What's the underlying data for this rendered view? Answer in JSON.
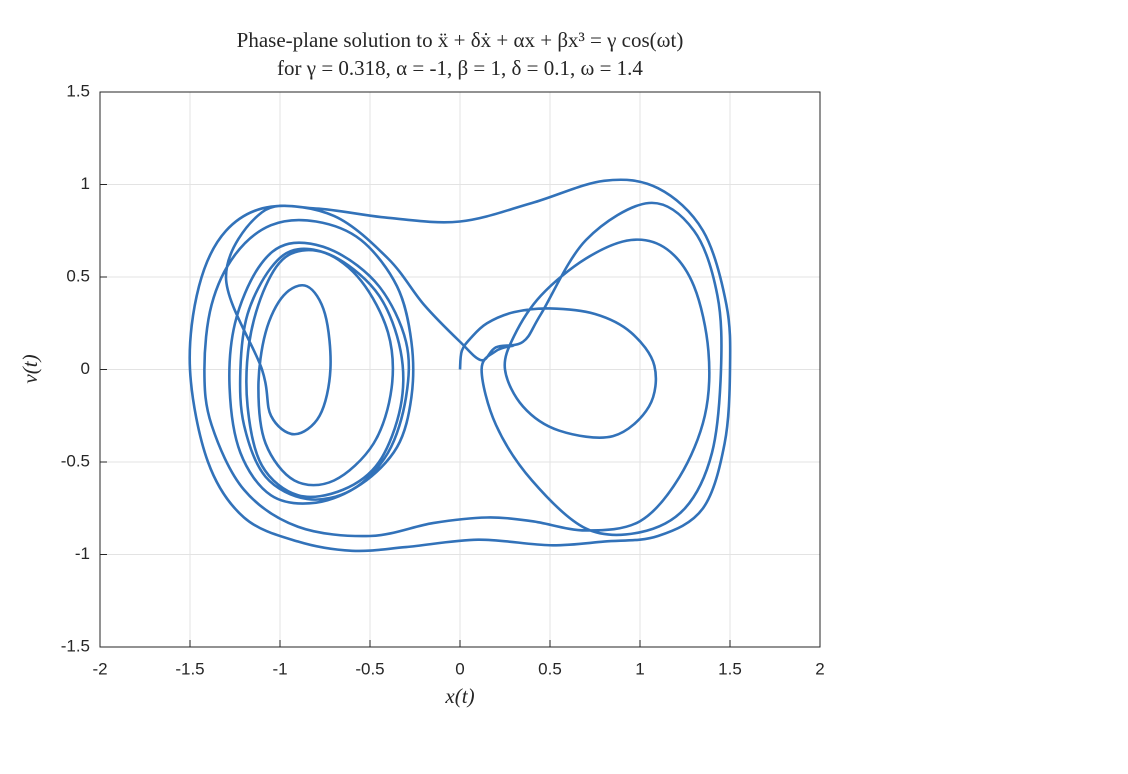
{
  "chart_data": {
    "type": "line",
    "title": "Phase-plane solution to ẍ + δẋ + αx + βx³ = γ cos(ωt)",
    "subtitle": "for γ = 0.318, α = -1, β = 1, δ = 0.1, ω = 1.4",
    "xlabel": "x(t)",
    "ylabel": "v(t)",
    "xlim": [
      -2,
      2
    ],
    "ylim": [
      -1.5,
      1.5
    ],
    "xticks": [
      -2,
      -1.5,
      -1,
      -0.5,
      0,
      0.5,
      1,
      1.5,
      2
    ],
    "yticks": [
      -1.5,
      -1,
      -0.5,
      0,
      0.5,
      1,
      1.5
    ],
    "grid": true,
    "color": "#3272b9",
    "x": [
      0,
      0.01,
      0.06,
      0.15,
      0.3,
      0.5,
      0.75,
      0.95,
      1.08,
      1.05,
      0.85,
      0.55,
      0.35,
      0.25,
      0.3,
      0.45,
      0.7,
      0.95,
      1.15,
      1.3,
      1.38,
      1.36,
      1.22,
      1.0,
      0.7,
      0.4,
      0.15,
      -0.15,
      -0.5,
      -0.9,
      -1.2,
      -1.38,
      -1.42,
      -1.38,
      -1.25,
      -1.05,
      -0.8,
      -0.55,
      -0.35,
      -0.27,
      -0.27,
      -0.35,
      -0.55,
      -0.8,
      -1.05,
      -1.22,
      -1.28,
      -1.25,
      -1.12,
      -0.95,
      -0.7,
      -0.45,
      -0.3,
      -0.3,
      -0.4,
      -0.6,
      -0.85,
      -1.08,
      -1.2,
      -1.22,
      -1.18,
      -1.05,
      -0.9,
      -0.68,
      -0.45,
      -0.33,
      -0.33,
      -0.45,
      -0.65,
      -0.9,
      -1.1,
      -1.18,
      -1.17,
      -1.08,
      -0.95,
      -0.75,
      -0.55,
      -0.4,
      -0.38,
      -0.48,
      -0.7,
      -0.92,
      -1.08,
      -1.12,
      -1.08,
      -0.98,
      -0.85,
      -0.75,
      -0.72,
      -0.78,
      -0.92,
      -1.05,
      -1.1,
      -1.3,
      -1.1,
      -0.8,
      -0.4,
      0,
      0.4,
      0.8,
      1.1,
      1.35,
      1.48,
      1.5,
      1.47,
      1.35,
      1.1,
      0.8,
      0.5,
      0.1,
      -0.3,
      -0.6,
      -0.9,
      -1.2,
      -1.4,
      -1.5,
      -1.45,
      -1.3,
      -1.05,
      -0.7,
      -0.4,
      -0.2,
      0,
      0.12,
      0.2,
      0.35,
      0.45,
      0.7,
      1.05,
      1.3,
      1.43,
      1.45,
      1.4,
      1.25,
      1.0,
      0.7,
      0.4,
      0.2,
      0.12,
      0.2,
      0.3
    ],
    "values": [
      0,
      0.1,
      0.17,
      0.25,
      0.31,
      0.33,
      0.3,
      0.2,
      0.02,
      -0.2,
      -0.36,
      -0.33,
      -0.2,
      0,
      0.18,
      0.4,
      0.6,
      0.7,
      0.65,
      0.45,
      0.1,
      -0.25,
      -0.58,
      -0.82,
      -0.87,
      -0.82,
      -0.8,
      -0.83,
      -0.9,
      -0.85,
      -0.65,
      -0.3,
      0,
      0.35,
      0.62,
      0.78,
      0.8,
      0.7,
      0.45,
      0.15,
      -0.15,
      -0.42,
      -0.62,
      -0.72,
      -0.68,
      -0.45,
      -0.1,
      0.25,
      0.55,
      0.68,
      0.64,
      0.45,
      0.15,
      -0.15,
      -0.45,
      -0.65,
      -0.7,
      -0.58,
      -0.3,
      0,
      0.3,
      0.55,
      0.65,
      0.6,
      0.4,
      0.1,
      -0.2,
      -0.5,
      -0.65,
      -0.68,
      -0.52,
      -0.2,
      0.15,
      0.45,
      0.62,
      0.63,
      0.48,
      0.2,
      -0.1,
      -0.4,
      -0.6,
      -0.6,
      -0.4,
      -0.1,
      0.2,
      0.4,
      0.45,
      0.3,
      0,
      -0.25,
      -0.35,
      -0.25,
      0,
      0.5,
      0.85,
      0.87,
      0.82,
      0.8,
      0.9,
      1.02,
      0.98,
      0.75,
      0.35,
      0,
      -0.4,
      -0.75,
      -0.9,
      -0.93,
      -0.95,
      -0.92,
      -0.96,
      -0.98,
      -0.93,
      -0.8,
      -0.5,
      0,
      0.45,
      0.75,
      0.88,
      0.83,
      0.6,
      0.35,
      0.15,
      0.05,
      0.12,
      0.15,
      0.3,
      0.7,
      0.9,
      0.75,
      0.4,
      0,
      -0.45,
      -0.75,
      -0.88,
      -0.86,
      -0.6,
      -0.3,
      0,
      0.1,
      0.13
    ]
  }
}
